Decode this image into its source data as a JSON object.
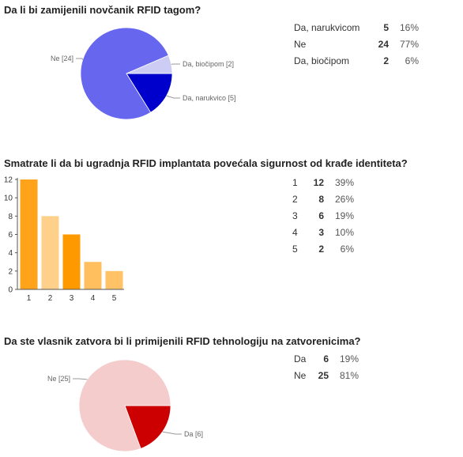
{
  "questions": [
    {
      "title": "Da li bi zamijenili novčanik RFID tagom?",
      "stats": [
        {
          "label": "Da, narukvicom",
          "count": "5",
          "percent": "16%"
        },
        {
          "label": "Ne",
          "count": "24",
          "percent": "77%"
        },
        {
          "label": "Da, biočipom",
          "count": "2",
          "percent": "6%"
        }
      ]
    },
    {
      "title": "Smatrate li da bi ugradnja RFID implantata povećala sigurnost od krađe identiteta?",
      "stats": [
        {
          "label": "1",
          "count": "12",
          "percent": "39%"
        },
        {
          "label": "2",
          "count": "8",
          "percent": "26%"
        },
        {
          "label": "3",
          "count": "6",
          "percent": "19%"
        },
        {
          "label": "4",
          "count": "3",
          "percent": "10%"
        },
        {
          "label": "5",
          "count": "2",
          "percent": "6%"
        }
      ]
    },
    {
      "title": "Da ste vlasnik zatvora bi li primijenili RFID tehnologiju na zatvorenicima?",
      "stats": [
        {
          "label": "Da",
          "count": "6",
          "percent": "19%"
        },
        {
          "label": "Ne",
          "count": "25",
          "percent": "81%"
        }
      ]
    }
  ],
  "chart_data": [
    {
      "type": "pie",
      "slices": [
        {
          "label": "Da, narukvico [5]",
          "value": 5,
          "color": "#0000cc"
        },
        {
          "label": "Ne [24]",
          "value": 24,
          "color": "#6666ee"
        },
        {
          "label": "Da, biočipom [2]",
          "value": 2,
          "color": "#ccccf5"
        }
      ]
    },
    {
      "type": "bar",
      "categories": [
        "1",
        "2",
        "3",
        "4",
        "5"
      ],
      "values": [
        12,
        8,
        6,
        3,
        2
      ],
      "colors": [
        "#ffa31a",
        "#ffd08a",
        "#ff9900",
        "#ffbf5e",
        "#ffc266"
      ],
      "ylim": [
        0,
        12
      ],
      "yticks": [
        "0",
        "2",
        "4",
        "6",
        "8",
        "10",
        "12"
      ]
    },
    {
      "type": "pie",
      "slices": [
        {
          "label": "Da [6]",
          "value": 6,
          "color": "#cc0000"
        },
        {
          "label": "Ne [25]",
          "value": 25,
          "color": "#f4cccc"
        }
      ]
    }
  ]
}
